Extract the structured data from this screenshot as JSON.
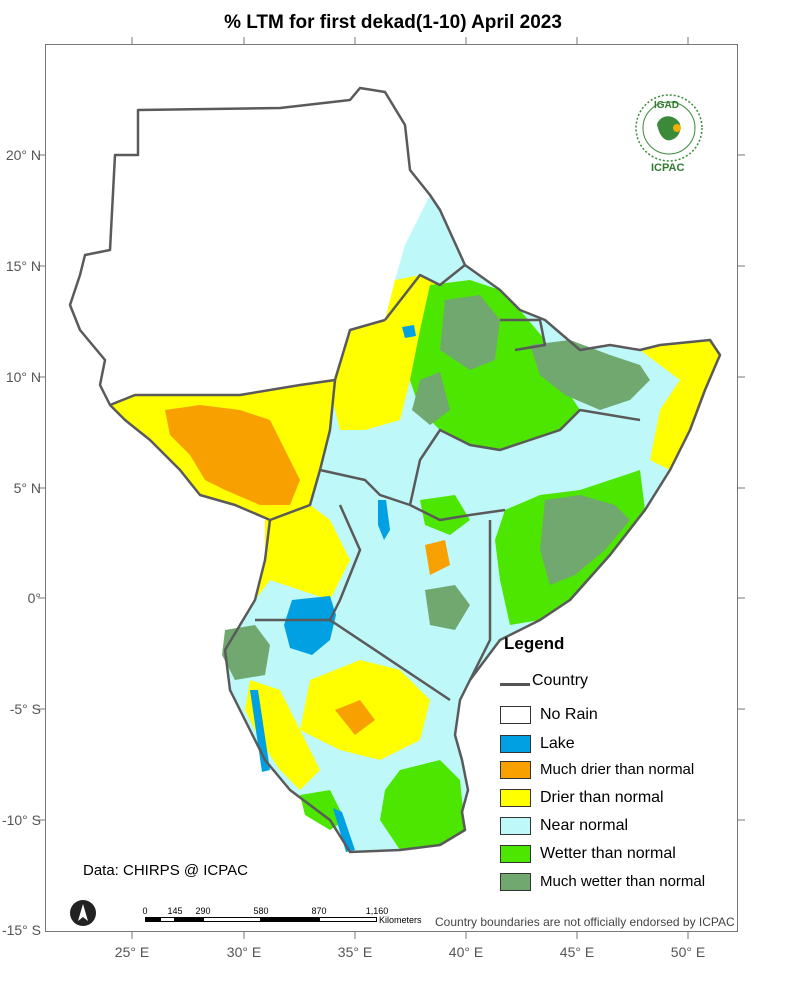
{
  "title": "% LTM    for  first dekad(1-10) April 2023",
  "axes": {
    "y_ticks": [
      "20° N",
      "15° N",
      "10° N",
      "5° N",
      "0°",
      "-5° S",
      "-10° S",
      "-15° S"
    ],
    "x_ticks": [
      "25° E",
      "30° E",
      "35° E",
      "40° E",
      "45° E",
      "50° E"
    ]
  },
  "legend": {
    "title": "Legend",
    "items": [
      {
        "label": "Country",
        "kind": "line",
        "color": "#5a5a5a"
      },
      {
        "label": "No Rain",
        "kind": "box",
        "color": "#ffffff"
      },
      {
        "label": "Lake",
        "kind": "box",
        "color": "#00a0e3"
      },
      {
        "label": "Much drier than normal",
        "kind": "box",
        "color": "#f7a000"
      },
      {
        "label": "Drier than normal",
        "kind": "box",
        "color": "#ffff00"
      },
      {
        "label": "Near normal",
        "kind": "box",
        "color": "#bff8f8"
      },
      {
        "label": "Wetter than normal",
        "kind": "box",
        "color": "#4ce600"
      },
      {
        "label": "Much wetter than normal",
        "kind": "box",
        "color": "#70a870"
      }
    ]
  },
  "source": "Data: CHIRPS @ ICPAC",
  "disclaimer": "Country boundaries are not officially endorsed by ICPAC",
  "scale_bar": {
    "labels": [
      "0",
      "145",
      "290",
      "580",
      "870",
      "1,160"
    ],
    "unit": "Kilometers"
  },
  "logo": {
    "top_text": "IGAD",
    "bottom_text": "ICPAC"
  }
}
